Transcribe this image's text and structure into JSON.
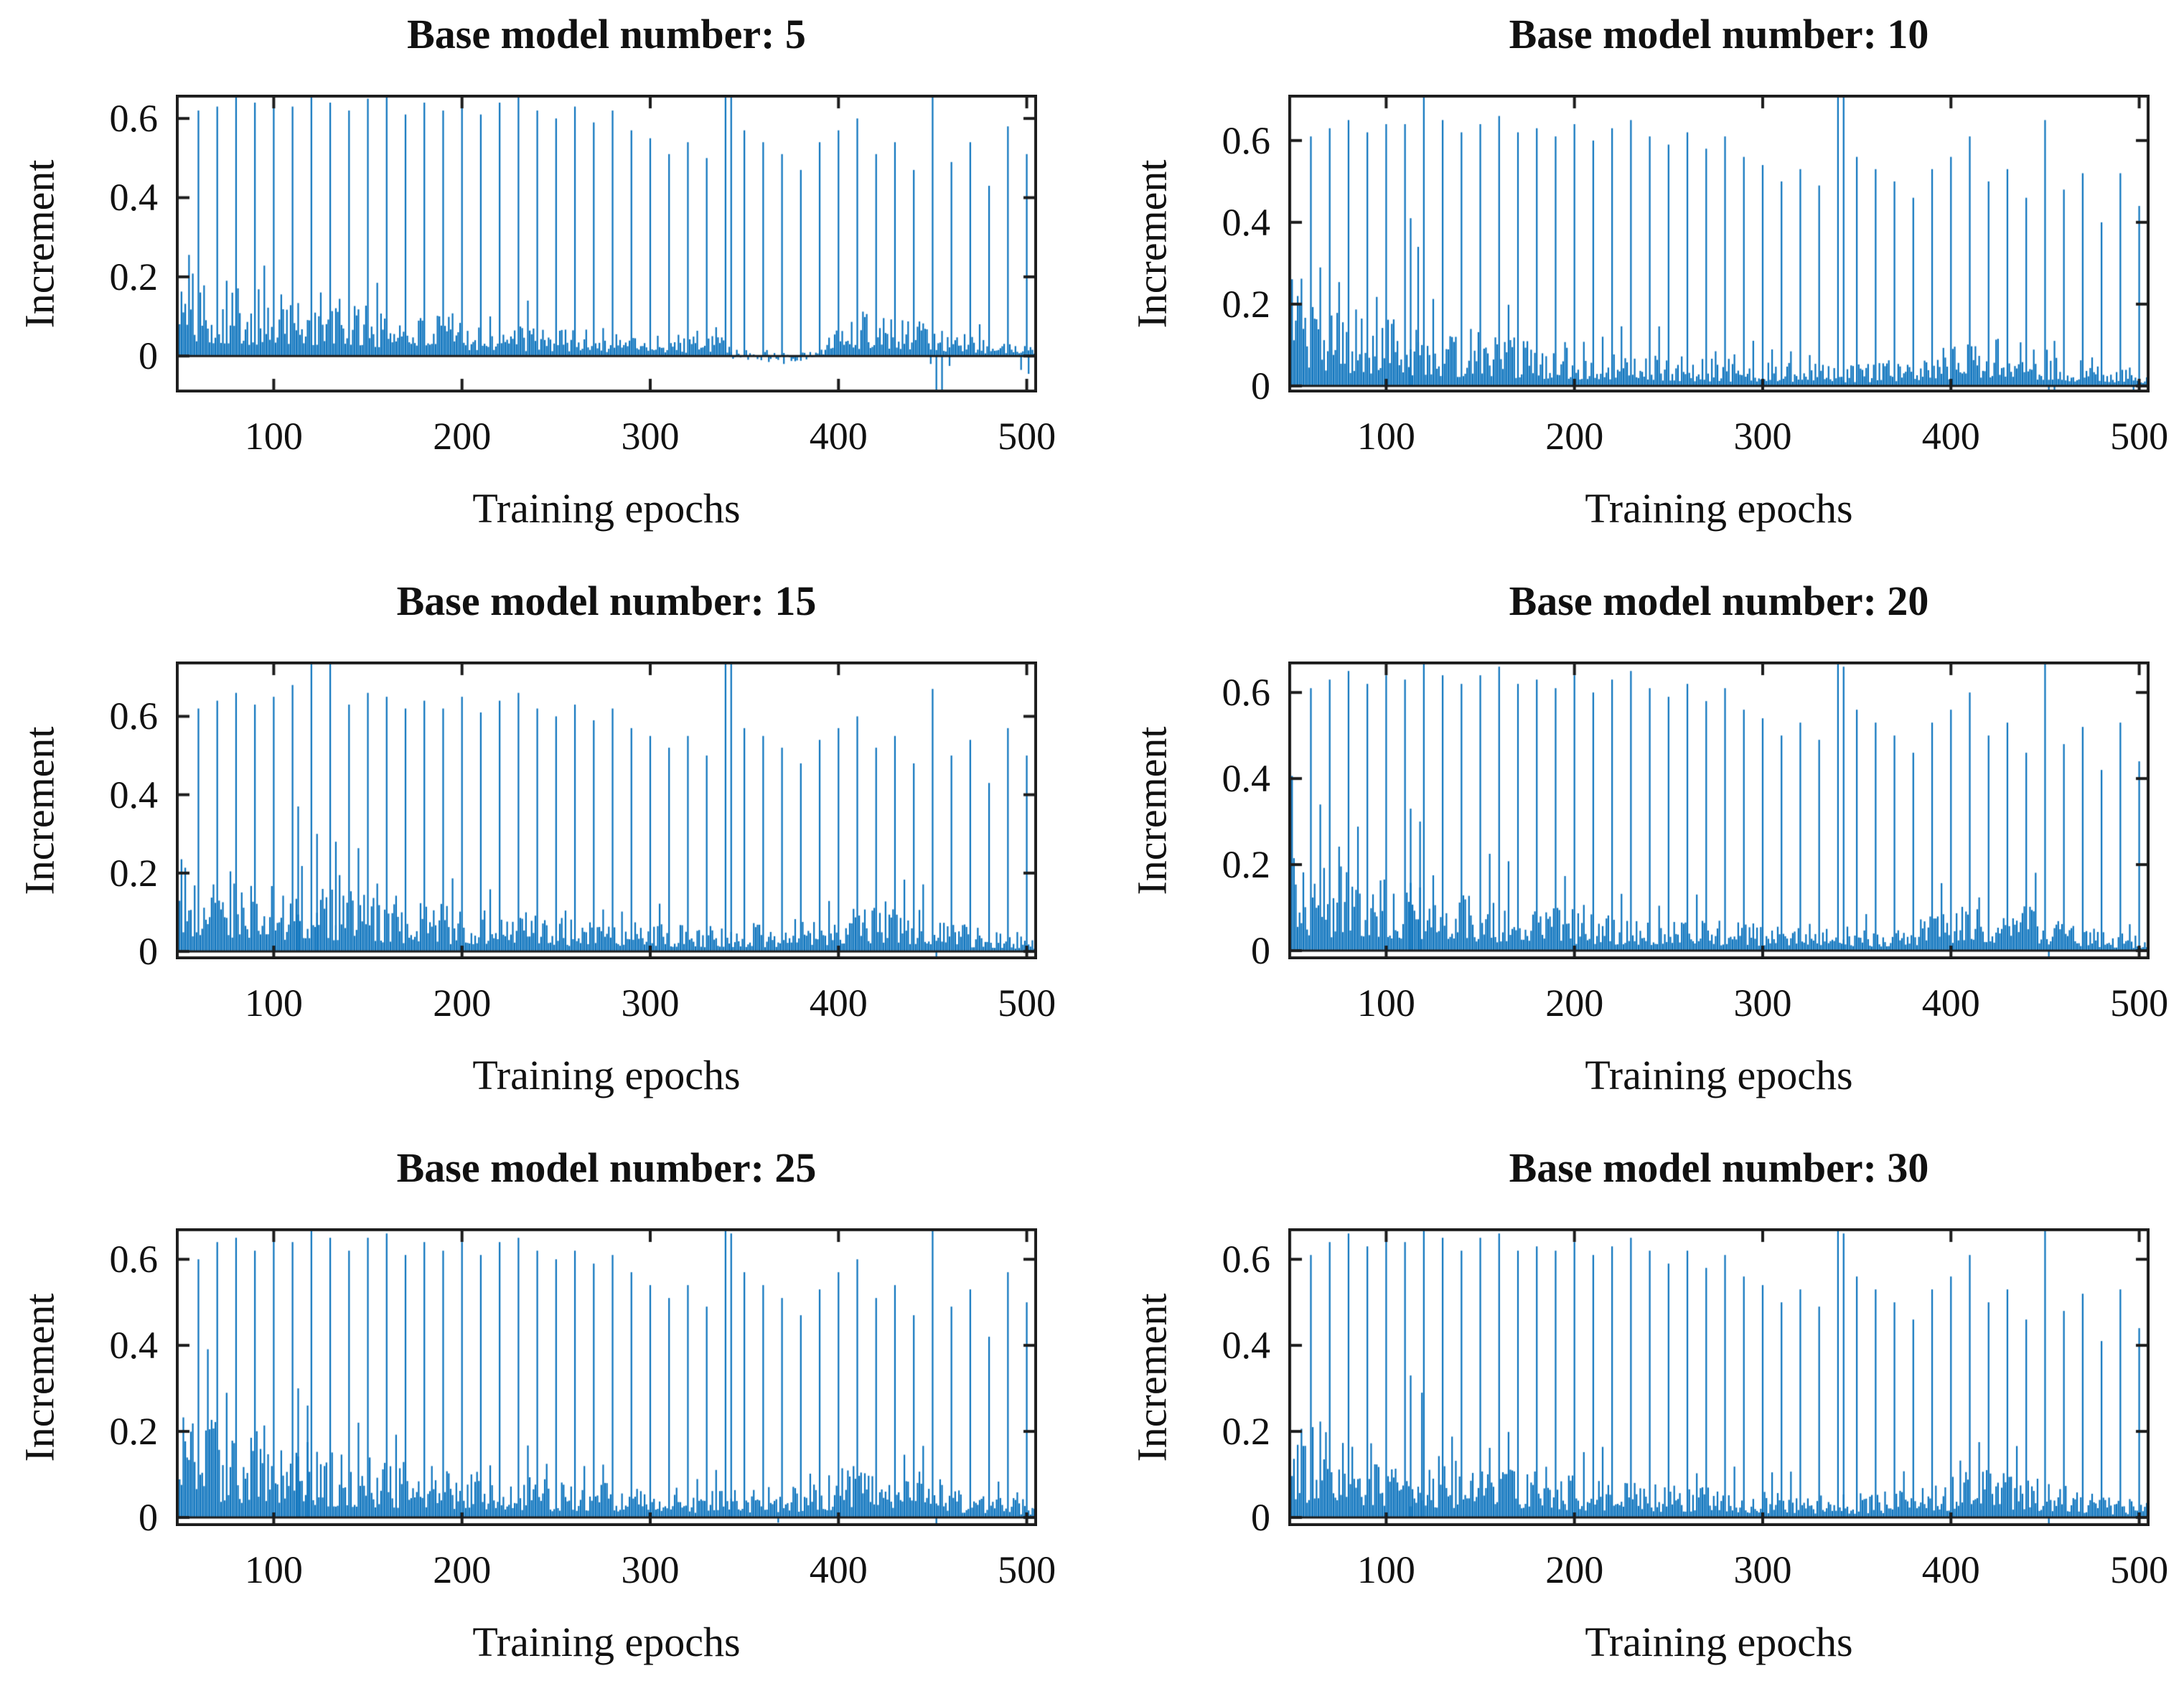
{
  "page": {
    "background": "#ffffff"
  },
  "figure": {
    "bar_color": "#0a72bd",
    "axis_color": "#1c1c1c",
    "text_color": "#111111",
    "grid": "off",
    "legend": "none"
  },
  "chart_data": [
    {
      "type": "bar",
      "title": "Base model number: 5",
      "xlabel": "Training epochs",
      "ylabel": "Increment",
      "xlim": [
        48,
        505.5
      ],
      "ylim": [
        -0.092,
        0.66
      ],
      "xticks": [
        100,
        200,
        300,
        400,
        500
      ],
      "yticks": [
        0,
        0.2,
        0.4,
        0.6
      ],
      "x_start": 50,
      "x_end": 505,
      "spike_x_start": 60,
      "spike_x_step": 10,
      "spike_heights": [
        0.62,
        0.63,
        0.66,
        0.64,
        0.65,
        0.63,
        0.66,
        0.64,
        0.62,
        0.65,
        0.66,
        0.61,
        0.64,
        0.62,
        0.65,
        0.61,
        0.64,
        0.66,
        0.62,
        0.6,
        0.63,
        0.59,
        0.62,
        0.57,
        0.55,
        0.51,
        0.54,
        0.5,
        0.72,
        0.57,
        0.54,
        0.51,
        0.47,
        0.54,
        0.57,
        0.6,
        0.51,
        0.54,
        0.47,
        0.66,
        0.49,
        0.54,
        0.43,
        0.58,
        0.51
      ],
      "extra_spikes": [
        [
          343,
          0.68
        ]
      ],
      "neg_spikes": [
        [
          449,
          -0.02
        ],
        [
          452,
          -0.2
        ],
        [
          455,
          -0.09
        ],
        [
          459,
          -0.025
        ],
        [
          363,
          -0.015
        ],
        [
          371,
          -0.02
        ],
        [
          380,
          -0.012
        ],
        [
          497,
          -0.035
        ],
        [
          501,
          -0.045
        ]
      ],
      "noise": {
        "seed": 101,
        "amp": 0.165,
        "tau": 160,
        "floor": 0.01,
        "hump_center": 422,
        "hump_amp": 0.065,
        "hump_width": 30,
        "neg_band": [
          344,
          392
        ]
      }
    },
    {
      "type": "bar",
      "title": "Base model number: 10",
      "xlabel": "Training epochs",
      "ylabel": "Increment",
      "xlim": [
        48,
        505.5
      ],
      "ylim": [
        -0.016,
        0.712
      ],
      "xticks": [
        100,
        200,
        300,
        400,
        500
      ],
      "yticks": [
        0,
        0.2,
        0.4,
        0.6
      ],
      "x_start": 50,
      "x_end": 505,
      "spike_x_start": 60,
      "spike_x_step": 10,
      "spike_heights": [
        0.61,
        0.63,
        0.65,
        0.62,
        0.64,
        0.64,
        0.72,
        0.65,
        0.62,
        0.64,
        0.66,
        0.62,
        0.63,
        0.61,
        0.64,
        0.6,
        0.63,
        0.65,
        0.61,
        0.59,
        0.62,
        0.58,
        0.61,
        0.56,
        0.54,
        0.5,
        0.53,
        0.49,
        0.76,
        0.56,
        0.53,
        0.5,
        0.46,
        0.53,
        0.56,
        0.61,
        0.5,
        0.53,
        0.46,
        0.65,
        0.48,
        0.52,
        0.4,
        0.52,
        0.44
      ],
      "extra_spikes": [
        [
          343,
          0.72
        ],
        [
          113,
          0.41
        ],
        [
          117,
          0.34
        ]
      ],
      "neg_spikes": [
        [
          452,
          -0.05
        ],
        [
          455,
          -0.035
        ],
        [
          497,
          -0.045
        ]
      ],
      "noise": {
        "seed": 102,
        "amp": 0.16,
        "tau": 160,
        "floor": 0.015,
        "hump_center": 425,
        "hump_amp": 0.06,
        "hump_width": 32,
        "neg_band": null
      }
    },
    {
      "type": "bar",
      "title": "Base model number: 15",
      "xlabel": "Training epochs",
      "ylabel": "Increment",
      "xlim": [
        48,
        505.5
      ],
      "ylim": [
        -0.02,
        0.74
      ],
      "xticks": [
        100,
        200,
        300,
        400,
        500
      ],
      "yticks": [
        0,
        0.2,
        0.4,
        0.6
      ],
      "x_start": 50,
      "x_end": 505,
      "spike_x_start": 60,
      "spike_x_step": 10,
      "spike_heights": [
        0.62,
        0.64,
        0.66,
        0.63,
        0.65,
        0.68,
        0.76,
        0.75,
        0.63,
        0.66,
        0.65,
        0.62,
        0.64,
        0.62,
        0.65,
        0.61,
        0.64,
        0.66,
        0.62,
        0.6,
        0.63,
        0.59,
        0.62,
        0.57,
        0.55,
        0.52,
        0.55,
        0.5,
        0.78,
        0.57,
        0.55,
        0.52,
        0.48,
        0.54,
        0.57,
        0.6,
        0.52,
        0.55,
        0.48,
        0.67,
        0.5,
        0.54,
        0.43,
        0.57,
        0.5
      ],
      "extra_spikes": [
        [
          343,
          0.74
        ],
        [
          113,
          0.37
        ],
        [
          123,
          0.3
        ],
        [
          133,
          0.28
        ]
      ],
      "neg_spikes": [
        [
          452,
          -0.02
        ],
        [
          500,
          -0.02
        ]
      ],
      "noise": {
        "seed": 103,
        "amp": 0.175,
        "tau": 165,
        "floor": 0.02,
        "hump_center": 422,
        "hump_amp": 0.06,
        "hump_width": 30,
        "neg_band": null
      }
    },
    {
      "type": "bar",
      "title": "Base model number: 20",
      "xlabel": "Training epochs",
      "ylabel": "Increment",
      "xlim": [
        48,
        505.5
      ],
      "ylim": [
        -0.02,
        0.672
      ],
      "xticks": [
        100,
        200,
        300,
        400,
        500
      ],
      "yticks": [
        0,
        0.2,
        0.4,
        0.6
      ],
      "x_start": 50,
      "x_end": 505,
      "spike_x_start": 60,
      "spike_x_step": 10,
      "spike_heights": [
        0.61,
        0.63,
        0.65,
        0.62,
        0.64,
        0.63,
        0.68,
        0.64,
        0.62,
        0.64,
        0.66,
        0.62,
        0.63,
        0.61,
        0.64,
        0.6,
        0.63,
        0.65,
        0.61,
        0.59,
        0.62,
        0.58,
        0.61,
        0.56,
        0.54,
        0.5,
        0.53,
        0.49,
        0.7,
        0.56,
        0.53,
        0.5,
        0.46,
        0.53,
        0.56,
        0.6,
        0.5,
        0.53,
        0.46,
        0.67,
        0.48,
        0.52,
        0.42,
        0.53,
        0.44
      ],
      "extra_spikes": [
        [
          343,
          0.66
        ],
        [
          113,
          0.33
        ],
        [
          118,
          0.3
        ]
      ],
      "neg_spikes": [
        [
          452,
          -0.03
        ],
        [
          500,
          -0.03
        ]
      ],
      "noise": {
        "seed": 104,
        "amp": 0.16,
        "tau": 160,
        "floor": 0.015,
        "hump_center": 425,
        "hump_amp": 0.06,
        "hump_width": 32,
        "neg_band": null
      }
    },
    {
      "type": "bar",
      "title": "Base model number: 25",
      "xlabel": "Training epochs",
      "ylabel": "Increment",
      "xlim": [
        48,
        505.5
      ],
      "ylim": [
        -0.02,
        0.672
      ],
      "xticks": [
        100,
        200,
        300,
        400,
        500
      ],
      "yticks": [
        0,
        0.2,
        0.4,
        0.6
      ],
      "x_start": 50,
      "x_end": 505,
      "spike_x_start": 60,
      "spike_x_step": 10,
      "spike_heights": [
        0.6,
        0.64,
        0.65,
        0.62,
        0.66,
        0.64,
        0.68,
        0.65,
        0.62,
        0.65,
        0.66,
        0.61,
        0.64,
        0.62,
        0.64,
        0.61,
        0.64,
        0.65,
        0.62,
        0.6,
        0.62,
        0.59,
        0.61,
        0.57,
        0.54,
        0.51,
        0.54,
        0.49,
        0.7,
        0.57,
        0.54,
        0.51,
        0.47,
        0.53,
        0.57,
        0.6,
        0.51,
        0.54,
        0.47,
        0.68,
        0.49,
        0.53,
        0.42,
        0.57,
        0.5
      ],
      "extra_spikes": [
        [
          343,
          0.66
        ],
        [
          113,
          0.3
        ],
        [
          118,
          0.26
        ]
      ],
      "neg_spikes": [
        [
          452,
          -0.02
        ],
        [
          368,
          -0.012
        ],
        [
          500,
          -0.02
        ]
      ],
      "noise": {
        "seed": 105,
        "amp": 0.175,
        "tau": 165,
        "floor": 0.02,
        "hump_center": 422,
        "hump_amp": 0.06,
        "hump_width": 30,
        "neg_band": null
      }
    },
    {
      "type": "bar",
      "title": "Base model number: 30",
      "xlabel": "Training epochs",
      "ylabel": "Increment",
      "xlim": [
        48,
        505.5
      ],
      "ylim": [
        -0.02,
        0.672
      ],
      "xticks": [
        100,
        200,
        300,
        400,
        500
      ],
      "yticks": [
        0,
        0.2,
        0.4,
        0.6
      ],
      "x_start": 50,
      "x_end": 505,
      "spike_x_start": 60,
      "spike_x_step": 10,
      "spike_heights": [
        0.61,
        0.64,
        0.66,
        0.63,
        0.65,
        0.64,
        0.68,
        0.65,
        0.62,
        0.65,
        0.66,
        0.62,
        0.63,
        0.62,
        0.64,
        0.61,
        0.63,
        0.65,
        0.62,
        0.59,
        0.62,
        0.58,
        0.61,
        0.56,
        0.54,
        0.5,
        0.53,
        0.49,
        0.7,
        0.56,
        0.53,
        0.5,
        0.46,
        0.53,
        0.56,
        0.61,
        0.5,
        0.53,
        0.46,
        0.67,
        0.48,
        0.52,
        0.41,
        0.53,
        0.44
      ],
      "extra_spikes": [
        [
          343,
          0.66
        ],
        [
          113,
          0.33
        ],
        [
          119,
          0.29
        ]
      ],
      "neg_spikes": [
        [
          452,
          -0.03
        ],
        [
          500,
          -0.03
        ]
      ],
      "noise": {
        "seed": 106,
        "amp": 0.16,
        "tau": 160,
        "floor": 0.015,
        "hump_center": 425,
        "hump_amp": 0.06,
        "hump_width": 32,
        "neg_band": null
      }
    }
  ]
}
